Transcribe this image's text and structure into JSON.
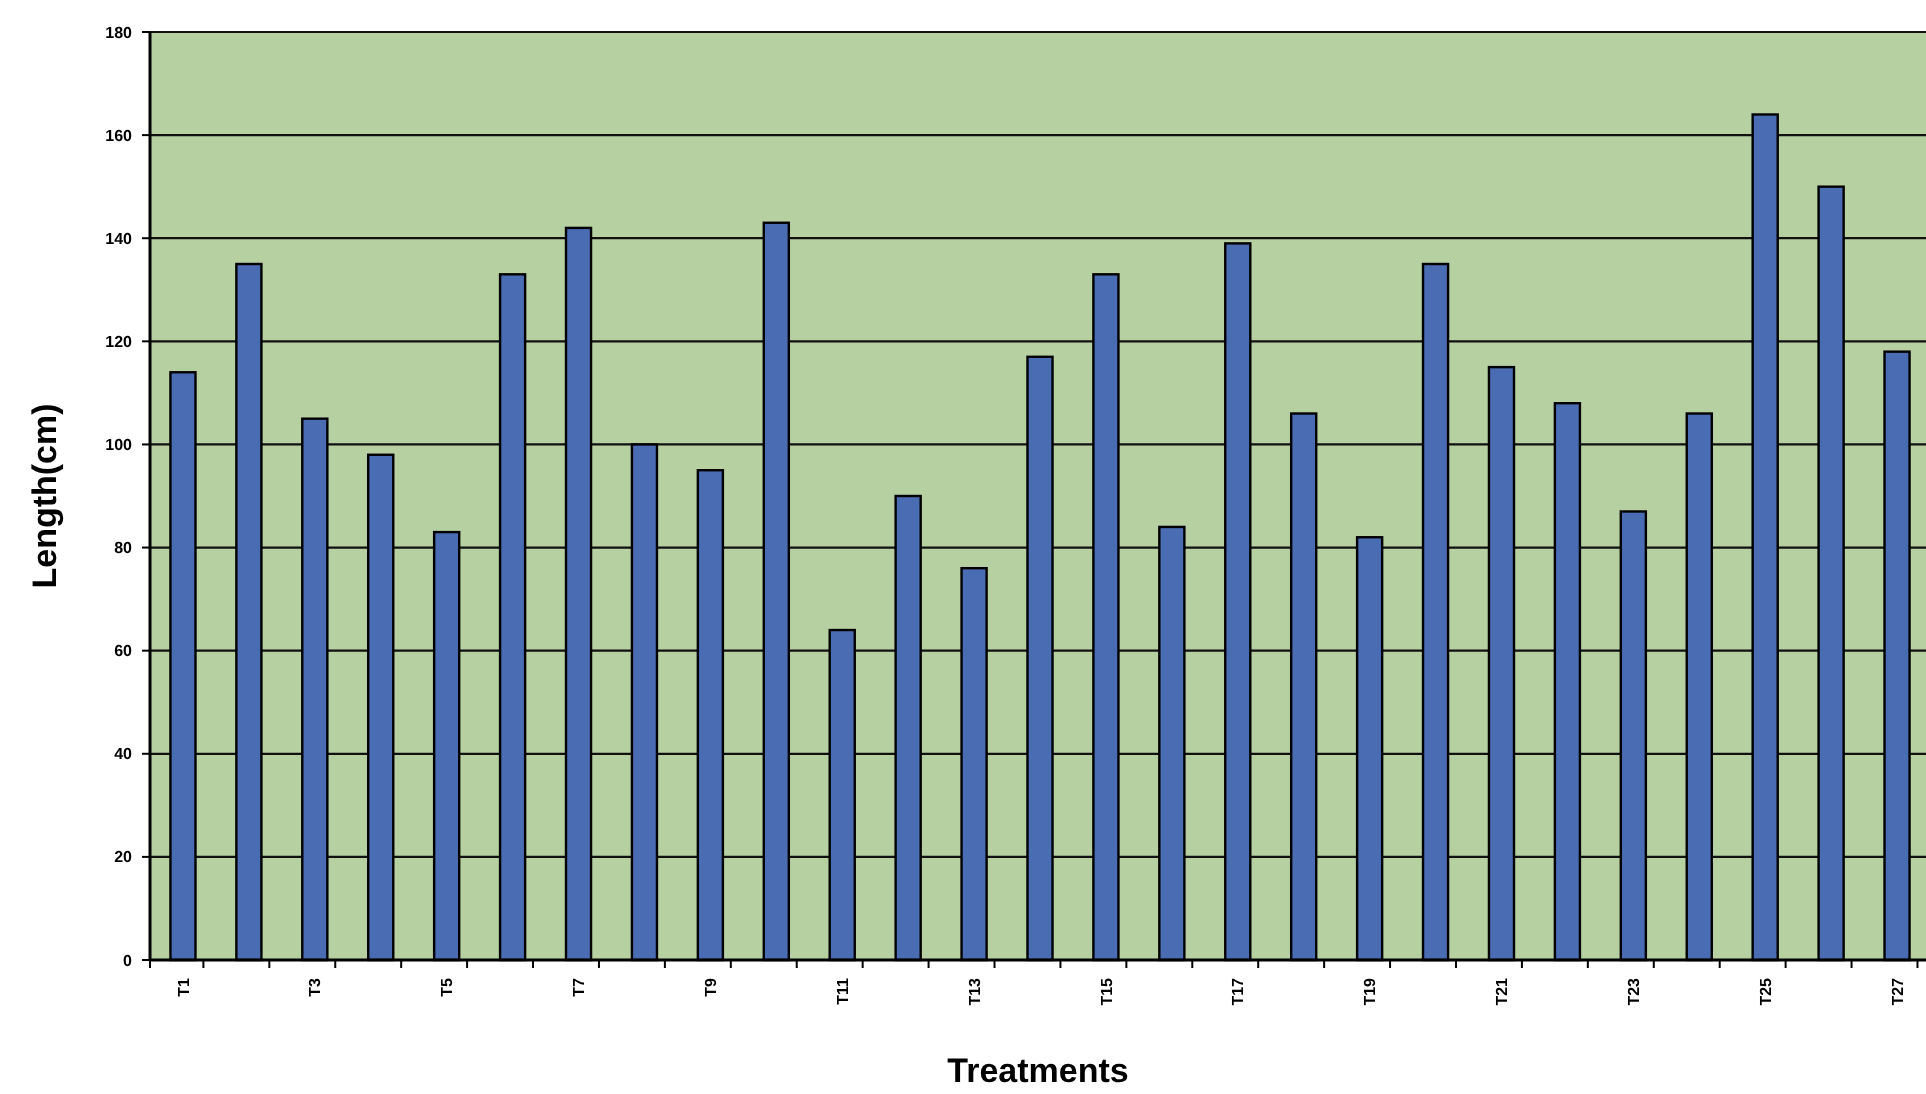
{
  "chart_data": {
    "type": "bar",
    "xlabel": "Treatments",
    "ylabel": "Length(cm)",
    "categories": [
      "T1",
      null,
      "T3",
      null,
      "T5",
      null,
      "T7",
      null,
      "T9",
      null,
      "T11",
      null,
      "T13",
      null,
      "T15",
      null,
      "T17",
      null,
      "T19",
      null,
      "T21",
      null,
      "T23",
      null,
      "T25",
      null,
      "T27"
    ],
    "values": [
      114,
      135,
      105,
      98,
      83,
      133,
      142,
      100,
      95,
      143,
      64,
      90,
      76,
      117,
      133,
      84,
      139,
      106,
      82,
      135,
      115,
      108,
      87,
      106,
      164,
      150,
      118
    ],
    "color": "#4a6cb3",
    "ylim": [
      0,
      180
    ],
    "yticks": [
      0,
      20,
      40,
      60,
      80,
      100,
      120,
      140,
      160,
      180
    ],
    "grid": "y"
  }
}
